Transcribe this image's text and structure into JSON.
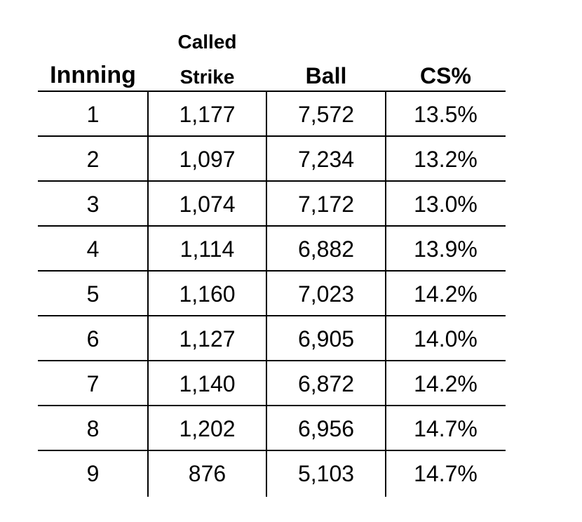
{
  "chart_data": {
    "type": "table",
    "columns": [
      "Innning",
      "Called Strike",
      "Ball",
      "CS%"
    ],
    "header_lines": {
      "innning": "Innning",
      "called": "Called",
      "strike": "Strike",
      "ball": "Ball",
      "cs_pct": "CS%"
    },
    "rows": [
      {
        "inning": "1",
        "called_strike": "1,177",
        "ball": "7,572",
        "cs_pct": "13.5%"
      },
      {
        "inning": "2",
        "called_strike": "1,097",
        "ball": "7,234",
        "cs_pct": "13.2%"
      },
      {
        "inning": "3",
        "called_strike": "1,074",
        "ball": "7,172",
        "cs_pct": "13.0%"
      },
      {
        "inning": "4",
        "called_strike": "1,114",
        "ball": "6,882",
        "cs_pct": "13.9%"
      },
      {
        "inning": "5",
        "called_strike": "1,160",
        "ball": "7,023",
        "cs_pct": "14.2%"
      },
      {
        "inning": "6",
        "called_strike": "1,127",
        "ball": "6,905",
        "cs_pct": "14.0%"
      },
      {
        "inning": "7",
        "called_strike": "1,140",
        "ball": "6,872",
        "cs_pct": "14.2%"
      },
      {
        "inning": "8",
        "called_strike": "1,202",
        "ball": "6,956",
        "cs_pct": "14.7%"
      },
      {
        "inning": "9",
        "called_strike": "876",
        "ball": "5,103",
        "cs_pct": "14.7%"
      }
    ]
  }
}
